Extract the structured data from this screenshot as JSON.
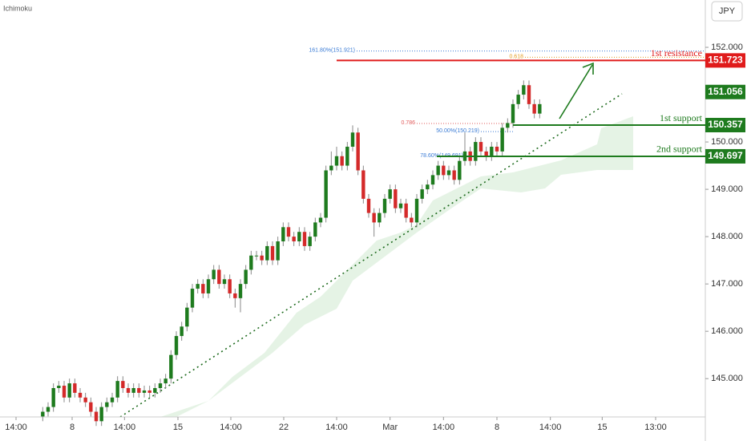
{
  "chart_data": {
    "type": "candlestick",
    "indicator": "Ichimoku",
    "currency": "JPY",
    "up_color": "#1e7b1e",
    "down_color": "#d42a2a",
    "xlim": [
      -8,
      124
    ],
    "xticks": [
      {
        "value": -5,
        "label": "14:00"
      },
      {
        "value": 5.5,
        "label": "8"
      },
      {
        "value": 15.3,
        "label": "14:00"
      },
      {
        "value": 25.3,
        "label": "15"
      },
      {
        "value": 35.2,
        "label": "14:00"
      },
      {
        "value": 45.1,
        "label": "22"
      },
      {
        "value": 55,
        "label": "14:00"
      },
      {
        "value": 65,
        "label": "Mar"
      },
      {
        "value": 75,
        "label": "14:00"
      },
      {
        "value": 85,
        "label": "8"
      },
      {
        "value": 95,
        "label": "14:00"
      },
      {
        "value": 104.7,
        "label": "15"
      },
      {
        "value": 114.7,
        "label": "13:00"
      }
    ],
    "ylim": [
      144.19,
      153.0
    ],
    "yticks": [
      {
        "value": 152,
        "label": "152.000"
      },
      {
        "value": 151,
        "label": "151.000"
      },
      {
        "value": 150,
        "label": "150.000"
      },
      {
        "value": 149,
        "label": "149.000"
      },
      {
        "value": 148,
        "label": "148.000"
      },
      {
        "value": 147,
        "label": "147.000"
      },
      {
        "value": 146,
        "label": "146.000"
      },
      {
        "value": 145,
        "label": "145.000"
      }
    ],
    "open": [
      144.2,
      144.3,
      144.4,
      144.8,
      144.85,
      144.6,
      144.9,
      144.7,
      144.6,
      144.5,
      144.3,
      144.1,
      144.4,
      144.5,
      144.6,
      144.95,
      144.8,
      144.7,
      144.8,
      144.7,
      144.75,
      144.7,
      144.8,
      144.9,
      145.0,
      145.5,
      145.9,
      146.1,
      146.5,
      146.9,
      147.0,
      146.8,
      147.1,
      147.3,
      147.0,
      147.1,
      146.8,
      146.7,
      147.0,
      147.3,
      147.6,
      147.6,
      147.5,
      147.8,
      147.5,
      147.9,
      148.2,
      148.0,
      147.9,
      148.1,
      147.8,
      148.0,
      148.3,
      148.4,
      149.4,
      149.5,
      149.7,
      149.5,
      149.9,
      150.2,
      149.4,
      148.8,
      148.5,
      148.3,
      148.5,
      148.8,
      149.0,
      148.6,
      148.7,
      148.4,
      148.3,
      148.8,
      149.0,
      149.1,
      149.3,
      149.5,
      149.3,
      149.4,
      149.2,
      149.6,
      149.8,
      149.6,
      150.0,
      149.8,
      149.7,
      149.9,
      149.8,
      150.3,
      150.4,
      150.8,
      151.0,
      151.2,
      150.8,
      150.6
    ],
    "high": [
      144.4,
      144.5,
      144.9,
      144.95,
      144.95,
      145.0,
      145.0,
      144.8,
      144.7,
      144.6,
      144.4,
      144.5,
      144.6,
      144.7,
      145.05,
      145.05,
      144.9,
      144.9,
      144.9,
      144.85,
      144.85,
      144.9,
      145.0,
      145.1,
      145.6,
      146.0,
      146.2,
      146.6,
      147.0,
      147.1,
      147.1,
      147.2,
      147.4,
      147.4,
      147.2,
      147.2,
      146.9,
      147.1,
      147.4,
      147.7,
      147.7,
      147.7,
      147.9,
      147.9,
      148.0,
      148.3,
      148.3,
      148.1,
      148.2,
      148.2,
      148.1,
      148.4,
      148.5,
      149.5,
      149.8,
      149.9,
      149.8,
      150.0,
      150.35,
      150.3,
      149.5,
      148.9,
      148.6,
      148.6,
      148.9,
      149.1,
      149.1,
      148.8,
      148.8,
      148.5,
      148.9,
      149.1,
      149.2,
      149.4,
      149.6,
      149.6,
      149.5,
      149.5,
      149.7,
      150.2,
      149.9,
      150.1,
      150.1,
      149.9,
      150.0,
      150.0,
      150.4,
      150.5,
      150.9,
      151.1,
      151.3,
      151.3,
      150.9,
      150.9
    ],
    "low": [
      144.1,
      144.2,
      144.3,
      144.7,
      144.5,
      144.5,
      144.6,
      144.5,
      144.4,
      144.2,
      144.0,
      144.0,
      144.3,
      144.4,
      144.5,
      144.7,
      144.6,
      144.6,
      144.6,
      144.6,
      144.6,
      144.6,
      144.7,
      144.8,
      144.9,
      145.4,
      145.8,
      146.0,
      146.4,
      146.8,
      146.7,
      146.7,
      147.0,
      146.9,
      146.9,
      146.7,
      146.5,
      146.4,
      146.9,
      147.2,
      147.5,
      147.4,
      147.4,
      147.4,
      147.4,
      147.8,
      147.9,
      147.8,
      147.8,
      147.7,
      147.7,
      147.9,
      148.2,
      148.3,
      149.3,
      149.4,
      149.4,
      149.4,
      149.8,
      149.3,
      148.7,
      148.4,
      148.0,
      148.2,
      148.4,
      148.7,
      148.5,
      148.5,
      148.3,
      148.2,
      148.2,
      148.7,
      148.9,
      149.0,
      149.2,
      149.2,
      149.2,
      149.1,
      149.1,
      149.5,
      149.5,
      149.5,
      149.7,
      149.6,
      149.6,
      149.7,
      149.7,
      150.2,
      150.3,
      150.7,
      150.9,
      150.7,
      150.5,
      150.5
    ],
    "close": [
      144.3,
      144.4,
      144.8,
      144.85,
      144.6,
      144.9,
      144.7,
      144.6,
      144.5,
      144.3,
      144.1,
      144.4,
      144.5,
      144.6,
      144.95,
      144.8,
      144.7,
      144.8,
      144.7,
      144.75,
      144.7,
      144.8,
      144.9,
      145.0,
      145.5,
      145.9,
      146.1,
      146.5,
      146.9,
      147.0,
      146.8,
      147.1,
      147.3,
      147.0,
      147.1,
      146.8,
      146.7,
      147.0,
      147.3,
      147.6,
      147.6,
      147.5,
      147.8,
      147.5,
      147.9,
      148.2,
      148.0,
      147.9,
      148.1,
      147.8,
      148.0,
      148.3,
      148.4,
      149.4,
      149.5,
      149.7,
      149.5,
      149.9,
      150.2,
      149.4,
      148.8,
      148.5,
      148.3,
      148.5,
      148.8,
      149.0,
      148.6,
      148.7,
      148.4,
      148.3,
      148.8,
      149.0,
      149.1,
      149.3,
      149.5,
      149.3,
      149.4,
      149.2,
      149.6,
      149.8,
      149.6,
      150.0,
      149.8,
      149.7,
      149.9,
      149.8,
      150.3,
      150.4,
      150.8,
      151.0,
      151.2,
      150.8,
      150.6,
      150.8
    ],
    "last_price": 151.056,
    "levels": [
      {
        "label": "1st resistance",
        "value": 151.723,
        "color": "#e01b1b"
      },
      {
        "label": "1st support",
        "value": 150.357,
        "color": "#1e7b1e"
      },
      {
        "label": "2nd support",
        "value": 149.697,
        "color": "#1e7b1e"
      }
    ],
    "fib_levels": [
      {
        "label": "161.80%(151.921)",
        "value": 151.921,
        "color": "#3a7bd5"
      },
      {
        "label": "0.618",
        "value": 151.79,
        "color": "#e39b1c"
      },
      {
        "label": "0.786",
        "value": 150.39,
        "color": "#e05a5a"
      },
      {
        "label": "50.00%(150.219)",
        "value": 150.219,
        "color": "#3a7bd5"
      },
      {
        "label": "78.60%(149.691)",
        "value": 149.691,
        "color": "#3a7bd5"
      }
    ]
  }
}
